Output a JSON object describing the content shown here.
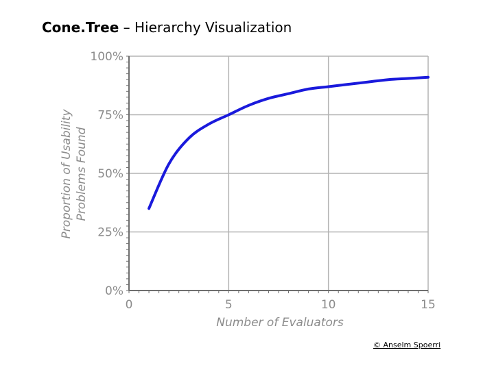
{
  "slide": {
    "title_bold": "Cone.Tree",
    "title_rest": " – Hierarchy Visualization",
    "credit": "© Anselm Spoerri"
  },
  "chart_data": {
    "type": "line",
    "title": "",
    "xlabel": "Number of Evaluators",
    "ylabel": [
      "Proportion of Usability",
      "Problems Found"
    ],
    "xlim": [
      0,
      15
    ],
    "ylim": [
      0,
      100
    ],
    "x_ticks": [
      0,
      5,
      10,
      15
    ],
    "x_tick_labels": [
      "0",
      "5",
      "10",
      "15"
    ],
    "y_ticks": [
      0,
      25,
      50,
      75,
      100
    ],
    "y_tick_labels": [
      "0%",
      "25%",
      "50%",
      "75%",
      "100%"
    ],
    "grid": true,
    "legend": "none",
    "series": [
      {
        "color": "#1a1adc",
        "x": [
          1,
          2,
          3,
          4,
          5,
          6,
          7,
          8,
          9,
          10,
          11,
          12,
          13,
          14,
          15
        ],
        "y": [
          35,
          54,
          65,
          71,
          75,
          79,
          82,
          84,
          86,
          87,
          88,
          89,
          90,
          90.5,
          91
        ]
      }
    ],
    "colors": {
      "axis": "#6e6e6e",
      "grid": "#b3b3b3",
      "text": "#8c8c8c"
    }
  }
}
